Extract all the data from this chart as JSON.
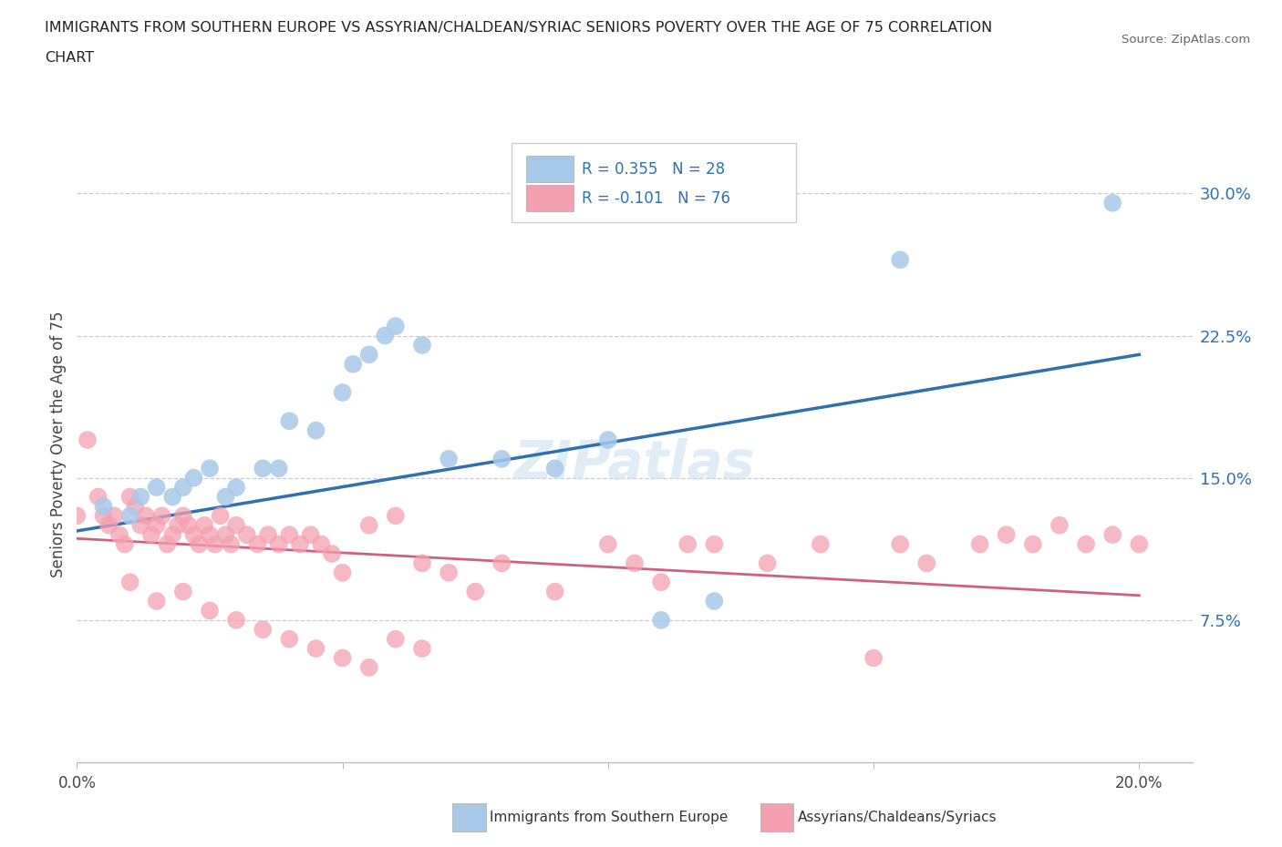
{
  "title_line1": "IMMIGRANTS FROM SOUTHERN EUROPE VS ASSYRIAN/CHALDEAN/SYRIAC SENIORS POVERTY OVER THE AGE OF 75 CORRELATION",
  "title_line2": "CHART",
  "source": "Source: ZipAtlas.com",
  "ylabel": "Seniors Poverty Over the Age of 75",
  "xlim": [
    0.0,
    0.21
  ],
  "ylim": [
    0.0,
    0.335
  ],
  "ytick_vals": [
    0.075,
    0.15,
    0.225,
    0.3
  ],
  "ytick_labels": [
    "7.5%",
    "15.0%",
    "22.5%",
    "30.0%"
  ],
  "xtick_vals": [
    0.0,
    0.05,
    0.1,
    0.15,
    0.2
  ],
  "xtick_labels": [
    "0.0%",
    "",
    "",
    "",
    "20.0%"
  ],
  "blue_color": "#a8c8e8",
  "pink_color": "#f4a0b0",
  "blue_line_color": "#3070b0",
  "pink_line_color": "#d06080",
  "blue_scatter_x": [
    0.005,
    0.01,
    0.012,
    0.015,
    0.018,
    0.02,
    0.022,
    0.025,
    0.028,
    0.03,
    0.035,
    0.038,
    0.04,
    0.045,
    0.05,
    0.052,
    0.055,
    0.058,
    0.06,
    0.065,
    0.07,
    0.08,
    0.09,
    0.1,
    0.11,
    0.12,
    0.155,
    0.195
  ],
  "blue_scatter_y": [
    0.135,
    0.13,
    0.14,
    0.145,
    0.14,
    0.145,
    0.15,
    0.155,
    0.14,
    0.145,
    0.155,
    0.155,
    0.18,
    0.175,
    0.195,
    0.21,
    0.215,
    0.225,
    0.23,
    0.22,
    0.16,
    0.16,
    0.155,
    0.17,
    0.075,
    0.085,
    0.265,
    0.295
  ],
  "pink_scatter_x": [
    0.0,
    0.002,
    0.004,
    0.005,
    0.006,
    0.007,
    0.008,
    0.009,
    0.01,
    0.011,
    0.012,
    0.013,
    0.014,
    0.015,
    0.016,
    0.017,
    0.018,
    0.019,
    0.02,
    0.021,
    0.022,
    0.023,
    0.024,
    0.025,
    0.026,
    0.027,
    0.028,
    0.029,
    0.03,
    0.032,
    0.034,
    0.036,
    0.038,
    0.04,
    0.042,
    0.044,
    0.046,
    0.048,
    0.05,
    0.055,
    0.06,
    0.065,
    0.07,
    0.075,
    0.08,
    0.09,
    0.1,
    0.105,
    0.11,
    0.115,
    0.12,
    0.13,
    0.14,
    0.15,
    0.155,
    0.16,
    0.17,
    0.175,
    0.18,
    0.185,
    0.19,
    0.195,
    0.2,
    0.01,
    0.015,
    0.02,
    0.025,
    0.03,
    0.035,
    0.04,
    0.045,
    0.05,
    0.055,
    0.06,
    0.065
  ],
  "pink_scatter_y": [
    0.13,
    0.17,
    0.14,
    0.13,
    0.125,
    0.13,
    0.12,
    0.115,
    0.14,
    0.135,
    0.125,
    0.13,
    0.12,
    0.125,
    0.13,
    0.115,
    0.12,
    0.125,
    0.13,
    0.125,
    0.12,
    0.115,
    0.125,
    0.12,
    0.115,
    0.13,
    0.12,
    0.115,
    0.125,
    0.12,
    0.115,
    0.12,
    0.115,
    0.12,
    0.115,
    0.12,
    0.115,
    0.11,
    0.1,
    0.125,
    0.13,
    0.105,
    0.1,
    0.09,
    0.105,
    0.09,
    0.115,
    0.105,
    0.095,
    0.115,
    0.115,
    0.105,
    0.115,
    0.055,
    0.115,
    0.105,
    0.115,
    0.12,
    0.115,
    0.125,
    0.115,
    0.12,
    0.115,
    0.095,
    0.085,
    0.09,
    0.08,
    0.075,
    0.07,
    0.065,
    0.06,
    0.055,
    0.05,
    0.065,
    0.06
  ],
  "watermark": "ZIPatlas",
  "blue_line_x0": 0.0,
  "blue_line_y0": 0.122,
  "blue_line_x1": 0.2,
  "blue_line_y1": 0.215,
  "pink_line_x0": 0.0,
  "pink_line_y0": 0.118,
  "pink_line_x1": 0.2,
  "pink_line_y1": 0.088
}
